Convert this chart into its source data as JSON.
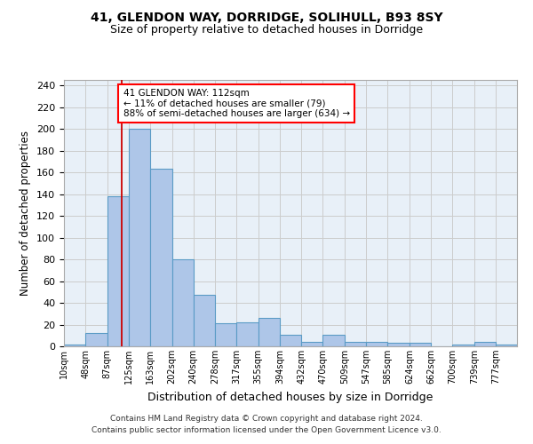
{
  "title1": "41, GLENDON WAY, DORRIDGE, SOLIHULL, B93 8SY",
  "title2": "Size of property relative to detached houses in Dorridge",
  "xlabel": "Distribution of detached houses by size in Dorridge",
  "ylabel": "Number of detached properties",
  "bin_labels": [
    "10sqm",
    "48sqm",
    "87sqm",
    "125sqm",
    "163sqm",
    "202sqm",
    "240sqm",
    "278sqm",
    "317sqm",
    "355sqm",
    "394sqm",
    "432sqm",
    "470sqm",
    "509sqm",
    "547sqm",
    "585sqm",
    "624sqm",
    "662sqm",
    "700sqm",
    "739sqm",
    "777sqm"
  ],
  "bin_edges": [
    10,
    48,
    87,
    125,
    163,
    202,
    240,
    278,
    317,
    355,
    394,
    432,
    470,
    509,
    547,
    585,
    624,
    662,
    700,
    739,
    777,
    815
  ],
  "bar_heights": [
    2,
    12,
    138,
    200,
    163,
    80,
    47,
    21,
    22,
    26,
    11,
    4,
    11,
    4,
    4,
    3,
    3,
    0,
    2,
    4,
    2
  ],
  "bar_color": "#aec6e8",
  "bar_edge_color": "#5a9bc5",
  "grid_color": "#cccccc",
  "background_color": "#e8f0f8",
  "red_line_x": 112,
  "annotation_text": "41 GLENDON WAY: 112sqm\n← 11% of detached houses are smaller (79)\n88% of semi-detached houses are larger (634) →",
  "annotation_box_color": "white",
  "annotation_box_edge": "red",
  "footer1": "Contains HM Land Registry data © Crown copyright and database right 2024.",
  "footer2": "Contains public sector information licensed under the Open Government Licence v3.0.",
  "ylim": [
    0,
    245
  ],
  "yticks": [
    0,
    20,
    40,
    60,
    80,
    100,
    120,
    140,
    160,
    180,
    200,
    220,
    240
  ]
}
